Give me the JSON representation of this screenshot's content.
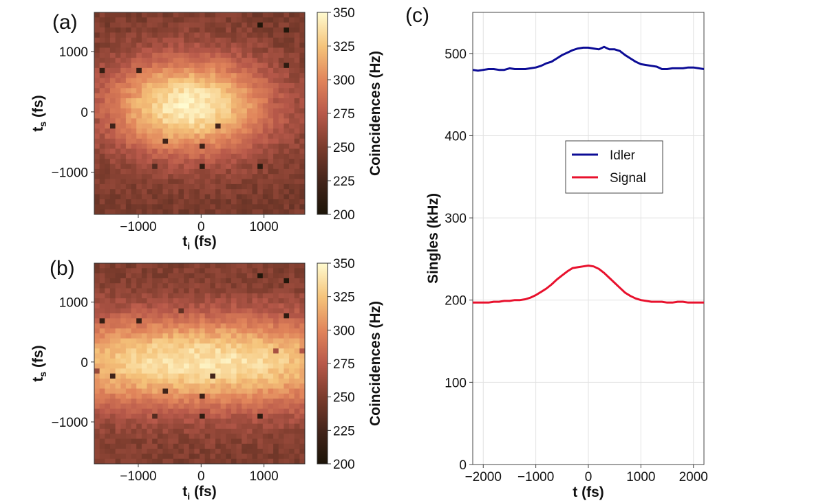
{
  "chart_data": [
    {
      "type": "heatmap",
      "panel_label": "(a)",
      "xlabel_main": "t",
      "xlabel_sub": "i",
      "xlabel_unit": " (fs)",
      "ylabel_main": "t",
      "ylabel_sub": "s",
      "ylabel_unit": " (fs)",
      "xlim": [
        -1700,
        1650
      ],
      "ylim": [
        -1700,
        1650
      ],
      "xticks": [
        -1000,
        0,
        1000
      ],
      "xtick_labels": [
        "−1000",
        "0",
        "1000"
      ],
      "yticks": [
        -1000,
        0,
        1000
      ],
      "ytick_labels": [
        "−1000",
        "0",
        "1000"
      ],
      "grid_size": 40,
      "background_hz": 248,
      "peak_hz": 345,
      "peak_center": [
        -200,
        100
      ],
      "peak_sigma": [
        950,
        580
      ],
      "colorbar_label": "Coincidences (Hz)",
      "colorbar_range": [
        200,
        350
      ],
      "colorbar_ticks": [
        200,
        225,
        250,
        275,
        300,
        325,
        350
      ],
      "colorbar_tick_labels": [
        "200",
        "225",
        "250",
        "275",
        "300",
        "325",
        "350"
      ],
      "outlier_pixels": [
        {
          "ti": 900,
          "ts": 1400,
          "hz": 203
        },
        {
          "ti": 1350,
          "ts": 1330,
          "hz": 204
        },
        {
          "ti": 1350,
          "ts": 800,
          "hz": 212
        },
        {
          "ti": -1550,
          "ts": 670,
          "hz": 215
        },
        {
          "ti": -1000,
          "ts": 720,
          "hz": 218
        },
        {
          "ti": 1150,
          "ts": 200,
          "hz": 268
        },
        {
          "ti": 1580,
          "ts": 200,
          "hz": 272
        },
        {
          "ti": -1650,
          "ts": -150,
          "hz": 262
        },
        {
          "ti": -1420,
          "ts": -200,
          "hz": 222
        },
        {
          "ti": 250,
          "ts": -260,
          "hz": 225
        },
        {
          "ti": -560,
          "ts": -470,
          "hz": 222
        },
        {
          "ti": 0,
          "ts": -600,
          "hz": 220
        },
        {
          "ti": 950,
          "ts": -870,
          "hz": 210
        },
        {
          "ti": 0,
          "ts": -930,
          "hz": 212
        },
        {
          "ti": -750,
          "ts": -930,
          "hz": 232
        }
      ]
    },
    {
      "type": "heatmap",
      "panel_label": "(b)",
      "xlabel_main": "t",
      "xlabel_sub": "i",
      "xlabel_unit": " (fs)",
      "ylabel_main": "t",
      "ylabel_sub": "s",
      "ylabel_unit": " (fs)",
      "xlim": [
        -1700,
        1650
      ],
      "ylim": [
        -1700,
        1650
      ],
      "xticks": [
        -1000,
        0,
        1000
      ],
      "xtick_labels": [
        "−1000",
        "0",
        "1000"
      ],
      "yticks": [
        -1000,
        0,
        1000
      ],
      "ytick_labels": [
        "−1000",
        "0",
        "1000"
      ],
      "grid_size": 40,
      "background_hz": 250,
      "peak_hz": 340,
      "peak_center": [
        0,
        0
      ],
      "peak_sigma": [
        2400,
        560
      ],
      "colorbar_label": "Coincidences (Hz)",
      "colorbar_range": [
        200,
        350
      ],
      "colorbar_ticks": [
        200,
        225,
        250,
        275,
        300,
        325,
        350
      ],
      "colorbar_tick_labels": [
        "200",
        "225",
        "250",
        "275",
        "300",
        "325",
        "350"
      ],
      "outlier_pixels": [
        {
          "ti": 900,
          "ts": 1400,
          "hz": 203
        },
        {
          "ti": 1350,
          "ts": 1330,
          "hz": 204
        },
        {
          "ti": 1350,
          "ts": 800,
          "hz": 212
        },
        {
          "ti": -1550,
          "ts": 670,
          "hz": 215
        },
        {
          "ti": -1000,
          "ts": 720,
          "hz": 218
        },
        {
          "ti": -280,
          "ts": 860,
          "hz": 238
        },
        {
          "ti": 1150,
          "ts": 200,
          "hz": 268
        },
        {
          "ti": 1580,
          "ts": 200,
          "hz": 272
        },
        {
          "ti": -1650,
          "ts": -150,
          "hz": 262
        },
        {
          "ti": -1420,
          "ts": -200,
          "hz": 222
        },
        {
          "ti": 200,
          "ts": -260,
          "hz": 225
        },
        {
          "ti": -560,
          "ts": -470,
          "hz": 222
        },
        {
          "ti": 0,
          "ts": -600,
          "hz": 220
        },
        {
          "ti": 950,
          "ts": -870,
          "hz": 210
        },
        {
          "ti": 0,
          "ts": -930,
          "hz": 212
        },
        {
          "ti": -750,
          "ts": -930,
          "hz": 232
        }
      ]
    },
    {
      "type": "line",
      "panel_label": "(c)",
      "xlabel": "t (fs)",
      "ylabel": "Singles (kHz)",
      "xlim": [
        -2200,
        2200
      ],
      "ylim": [
        0,
        550
      ],
      "xticks": [
        -2000,
        -1000,
        0,
        1000,
        2000
      ],
      "xtick_labels": [
        "−2000",
        "−1000",
        "0",
        "1000",
        "2000"
      ],
      "yticks": [
        0,
        100,
        200,
        300,
        400,
        500
      ],
      "ytick_labels": [
        "0",
        "100",
        "200",
        "300",
        "400",
        "500"
      ],
      "grid": true,
      "legend_position": "center-right",
      "x": [
        -2200,
        -2100,
        -2000,
        -1900,
        -1800,
        -1700,
        -1600,
        -1500,
        -1400,
        -1300,
        -1200,
        -1100,
        -1000,
        -900,
        -800,
        -700,
        -600,
        -500,
        -400,
        -300,
        -200,
        -100,
        0,
        100,
        200,
        300,
        400,
        500,
        600,
        700,
        800,
        900,
        1000,
        1100,
        1200,
        1300,
        1400,
        1500,
        1600,
        1700,
        1800,
        1900,
        2000,
        2100,
        2200
      ],
      "series": [
        {
          "name": "Idler",
          "color": "#0c0c96",
          "values": [
            480,
            479,
            480,
            481,
            481,
            480,
            480,
            482,
            481,
            481,
            481,
            482,
            483,
            485,
            488,
            490,
            494,
            498,
            501,
            504,
            506,
            507,
            507,
            506,
            505,
            508,
            505,
            505,
            503,
            498,
            494,
            490,
            487,
            486,
            485,
            484,
            481,
            481,
            482,
            482,
            482,
            483,
            483,
            482,
            481
          ]
        },
        {
          "name": "Signal",
          "color": "#e8112d",
          "values": [
            197,
            197,
            197,
            197,
            198,
            198,
            199,
            199,
            200,
            200,
            201,
            203,
            206,
            210,
            214,
            219,
            225,
            230,
            235,
            239,
            240,
            241,
            242,
            241,
            238,
            233,
            227,
            221,
            215,
            209,
            205,
            202,
            200,
            199,
            198,
            198,
            198,
            197,
            197,
            198,
            198,
            197,
            197,
            197,
            197
          ]
        }
      ]
    }
  ]
}
